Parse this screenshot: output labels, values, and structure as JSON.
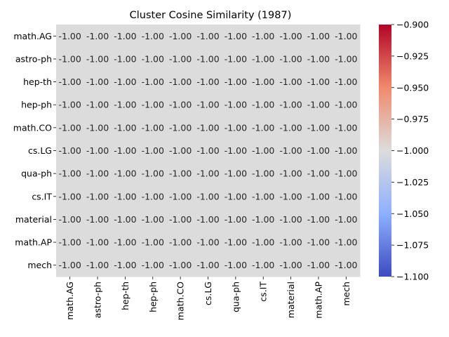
{
  "chart_data": {
    "type": "heatmap",
    "title": "Cluster Cosine Similarity (1987)",
    "xlabel": "",
    "ylabel": "",
    "rows": [
      "math.AG",
      "astro-ph",
      "hep-th",
      "hep-ph",
      "math.CO",
      "cs.LG",
      "qua-ph",
      "cs.IT",
      "material",
      "math.AP",
      "mech"
    ],
    "columns": [
      "math.AG",
      "astro-ph",
      "hep-th",
      "hep-ph",
      "math.CO",
      "cs.LG",
      "qua-ph",
      "cs.IT",
      "material",
      "math.AP",
      "mech"
    ],
    "values": [
      [
        -1.0,
        -1.0,
        -1.0,
        -1.0,
        -1.0,
        -1.0,
        -1.0,
        -1.0,
        -1.0,
        -1.0,
        -1.0
      ],
      [
        -1.0,
        -1.0,
        -1.0,
        -1.0,
        -1.0,
        -1.0,
        -1.0,
        -1.0,
        -1.0,
        -1.0,
        -1.0
      ],
      [
        -1.0,
        -1.0,
        -1.0,
        -1.0,
        -1.0,
        -1.0,
        -1.0,
        -1.0,
        -1.0,
        -1.0,
        -1.0
      ],
      [
        -1.0,
        -1.0,
        -1.0,
        -1.0,
        -1.0,
        -1.0,
        -1.0,
        -1.0,
        -1.0,
        -1.0,
        -1.0
      ],
      [
        -1.0,
        -1.0,
        -1.0,
        -1.0,
        -1.0,
        -1.0,
        -1.0,
        -1.0,
        -1.0,
        -1.0,
        -1.0
      ],
      [
        -1.0,
        -1.0,
        -1.0,
        -1.0,
        -1.0,
        -1.0,
        -1.0,
        -1.0,
        -1.0,
        -1.0,
        -1.0
      ],
      [
        -1.0,
        -1.0,
        -1.0,
        -1.0,
        -1.0,
        -1.0,
        -1.0,
        -1.0,
        -1.0,
        -1.0,
        -1.0
      ],
      [
        -1.0,
        -1.0,
        -1.0,
        -1.0,
        -1.0,
        -1.0,
        -1.0,
        -1.0,
        -1.0,
        -1.0,
        -1.0
      ],
      [
        -1.0,
        -1.0,
        -1.0,
        -1.0,
        -1.0,
        -1.0,
        -1.0,
        -1.0,
        -1.0,
        -1.0,
        -1.0
      ],
      [
        -1.0,
        -1.0,
        -1.0,
        -1.0,
        -1.0,
        -1.0,
        -1.0,
        -1.0,
        -1.0,
        -1.0,
        -1.0
      ],
      [
        -1.0,
        -1.0,
        -1.0,
        -1.0,
        -1.0,
        -1.0,
        -1.0,
        -1.0,
        -1.0,
        -1.0,
        -1.0
      ]
    ],
    "value_format": "0.00",
    "colormap": "coolwarm",
    "cell_color": "#dcdcdc",
    "colorbar": {
      "min": -1.1,
      "max": -0.9,
      "ticks": [
        -0.9,
        -0.925,
        -0.95,
        -0.975,
        -1.0,
        -1.025,
        -1.05,
        -1.075,
        -1.1
      ],
      "tick_labels": [
        "−0.900",
        "−0.925",
        "−0.950",
        "−0.975",
        "−1.000",
        "−1.025",
        "−1.050",
        "−1.075",
        "−1.100"
      ],
      "gradient_colors": [
        "#b40426",
        "#f08a6c",
        "#dddcdc",
        "#8db0fe",
        "#3b4cc0"
      ]
    },
    "grid": false,
    "legend": "colorbar-right"
  }
}
